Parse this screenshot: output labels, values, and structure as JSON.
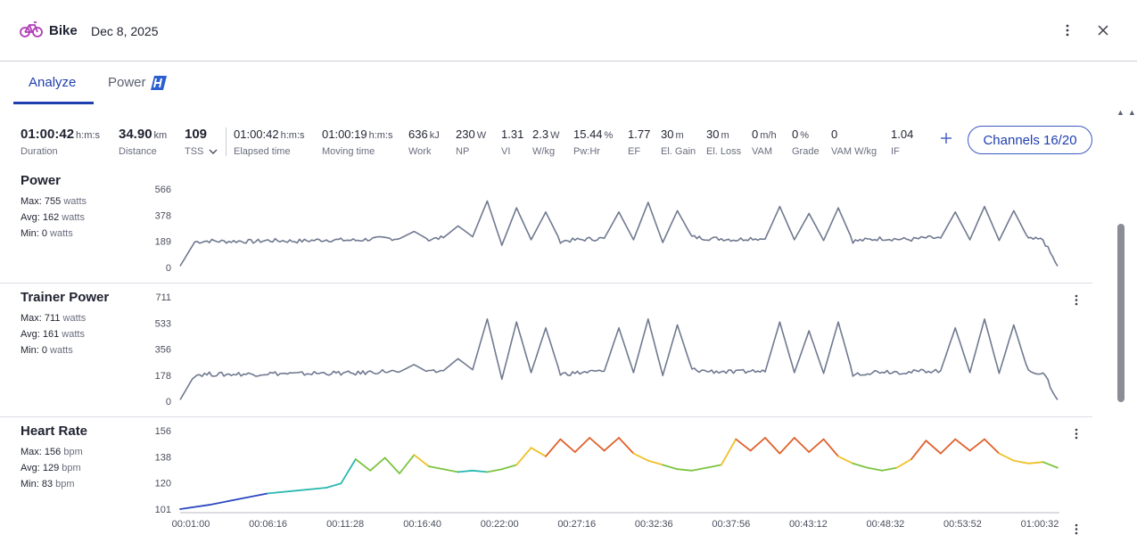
{
  "header": {
    "sport": "Bike",
    "date": "Dec 8, 2025",
    "icons": {
      "sport": "bike-icon",
      "menu": "more-vertical-icon",
      "close": "close-icon"
    },
    "sport_icon_color": "#b03ab8"
  },
  "tabs": [
    {
      "label": "Analyze",
      "active": true
    },
    {
      "label": "Power",
      "active": false,
      "icon": "power-brand-icon"
    }
  ],
  "summary": [
    {
      "value": "01:00:42",
      "unit": "h:m:s",
      "label": "Duration",
      "big": true
    },
    {
      "value": "34.90",
      "unit": "km",
      "label": "Distance",
      "big": true
    },
    {
      "value": "109",
      "unit": "",
      "label": "TSS",
      "big": true,
      "dropdown": true
    },
    {
      "value": "01:00:42",
      "unit": "h:m:s",
      "label": "Elapsed time"
    },
    {
      "value": "01:00:19",
      "unit": "h:m:s",
      "label": "Moving time"
    },
    {
      "value": "636",
      "unit": "kJ",
      "label": "Work"
    },
    {
      "value": "230",
      "unit": "W",
      "label": "NP"
    },
    {
      "value": "1.31",
      "unit": "",
      "label": "VI"
    },
    {
      "value": "2.3",
      "unit": "W",
      "label": "W/kg"
    },
    {
      "value": "15.44",
      "unit": "%",
      "label": "Pw:Hr"
    },
    {
      "value": "1.77",
      "unit": "",
      "label": "EF"
    },
    {
      "value": "30",
      "unit": "m",
      "label": "El. Gain"
    },
    {
      "value": "30",
      "unit": "m",
      "label": "El. Loss"
    },
    {
      "value": "0",
      "unit": "m/h",
      "label": "VAM"
    },
    {
      "value": "0",
      "unit": "%",
      "label": "Grade"
    },
    {
      "value": "0",
      "unit": "",
      "label": "VAM W/kg"
    },
    {
      "value": "1.04",
      "unit": "",
      "label": "IF"
    }
  ],
  "toolbar": {
    "add_icon": "plus-icon",
    "channels_label": "Channels 16/20"
  },
  "panels": {
    "power": {
      "title": "Power",
      "max_label": "Max:",
      "max_value": "755",
      "max_unit": "watts",
      "avg_label": "Avg:",
      "avg_value": "162",
      "avg_unit": "watts",
      "min_label": "Min:",
      "min_value": "0",
      "min_unit": "watts",
      "y_ticks": [
        "566",
        "378",
        "189",
        "0"
      ]
    },
    "trainer_power": {
      "title": "Trainer Power",
      "max_label": "Max:",
      "max_value": "711",
      "max_unit": "watts",
      "avg_label": "Avg:",
      "avg_value": "161",
      "avg_unit": "watts",
      "min_label": "Min:",
      "min_value": "0",
      "min_unit": "watts",
      "y_ticks": [
        "711",
        "533",
        "356",
        "178",
        "0"
      ]
    },
    "heart_rate": {
      "title": "Heart Rate",
      "max_label": "Max:",
      "max_value": "156",
      "max_unit": "bpm",
      "avg_label": "Avg:",
      "avg_value": "129",
      "avg_unit": "bpm",
      "min_label": "Min:",
      "min_value": "83",
      "min_unit": "bpm",
      "y_ticks": [
        "156",
        "138",
        "120",
        "101"
      ]
    }
  },
  "x_axis_ticks": [
    "00:01:00",
    "00:06:16",
    "00:11:28",
    "00:16:40",
    "00:22:00",
    "00:27:16",
    "00:32:36",
    "00:37:56",
    "00:43:12",
    "00:48:32",
    "00:53:52",
    "01:00:32"
  ],
  "colors": {
    "accent": "#1f3fb0",
    "power_line": "#6f7990",
    "hr_low": "#2a46c0",
    "hr_mid": "#2ab8b0",
    "hr_green": "#7cc440",
    "hr_yellow": "#f0c02a",
    "hr_red": "#8a1030"
  },
  "chart_data": [
    {
      "type": "line",
      "title": "Power",
      "ylabel": "watts",
      "ylim": [
        0,
        566
      ],
      "series": [
        {
          "name": "Power",
          "x": [
            0,
            1,
            2,
            3,
            4,
            5,
            6,
            7,
            8,
            9,
            10,
            11,
            12,
            13,
            14,
            15,
            16,
            17,
            18,
            19,
            20,
            21,
            22,
            23,
            24,
            25,
            26,
            27,
            28,
            29,
            30,
            31,
            32,
            33,
            34,
            35,
            36,
            37,
            38,
            39,
            40,
            41,
            42,
            43,
            44,
            45,
            46,
            47,
            48,
            49,
            50,
            51,
            52,
            53,
            54,
            55,
            56,
            57,
            58,
            59,
            60
          ],
          "y": [
            10,
            185,
            192,
            188,
            190,
            187,
            195,
            193,
            190,
            195,
            200,
            198,
            196,
            205,
            210,
            208,
            260,
            200,
            215,
            300,
            222,
            480,
            160,
            430,
            200,
            400,
            190,
            198,
            205,
            210,
            400,
            200,
            470,
            180,
            410,
            220,
            210,
            208,
            200,
            212,
            205,
            440,
            200,
            390,
            195,
            430,
            190,
            200,
            210,
            205,
            202,
            214,
            212,
            400,
            200,
            440,
            195,
            410,
            205,
            200,
            10
          ]
        }
      ]
    },
    {
      "type": "line",
      "title": "Trainer Power",
      "ylabel": "watts",
      "ylim": [
        0,
        711
      ],
      "series": [
        {
          "name": "Trainer Power",
          "x": [
            0,
            1,
            2,
            3,
            4,
            5,
            6,
            7,
            8,
            9,
            10,
            11,
            12,
            13,
            14,
            15,
            16,
            17,
            18,
            19,
            20,
            21,
            22,
            23,
            24,
            25,
            26,
            27,
            28,
            29,
            30,
            31,
            32,
            33,
            34,
            35,
            36,
            37,
            38,
            39,
            40,
            41,
            42,
            43,
            44,
            45,
            46,
            47,
            48,
            49,
            50,
            51,
            52,
            53,
            54,
            55,
            56,
            57,
            58,
            59,
            60
          ],
          "y": [
            10,
            180,
            185,
            182,
            186,
            184,
            190,
            188,
            186,
            190,
            192,
            191,
            190,
            198,
            204,
            200,
            250,
            195,
            208,
            290,
            215,
            560,
            150,
            540,
            195,
            500,
            185,
            192,
            200,
            205,
            500,
            195,
            560,
            175,
            520,
            215,
            205,
            203,
            196,
            207,
            200,
            540,
            195,
            480,
            190,
            540,
            185,
            195,
            205,
            200,
            198,
            208,
            207,
            500,
            195,
            560,
            190,
            520,
            200,
            195,
            10
          ]
        }
      ]
    },
    {
      "type": "line",
      "title": "Heart Rate",
      "ylabel": "bpm",
      "ylim": [
        101,
        156
      ],
      "series": [
        {
          "name": "Heart Rate",
          "x": [
            0,
            2,
            4,
            6,
            8,
            10,
            11,
            12,
            13,
            14,
            15,
            16,
            17,
            18,
            19,
            20,
            21,
            22,
            23,
            24,
            25,
            26,
            27,
            28,
            29,
            30,
            31,
            32,
            33,
            34,
            35,
            36,
            37,
            38,
            39,
            40,
            41,
            42,
            43,
            44,
            45,
            46,
            47,
            48,
            49,
            50,
            51,
            52,
            53,
            54,
            55,
            56,
            57,
            58,
            59,
            60
          ],
          "y": [
            101,
            104,
            108,
            112,
            114,
            116,
            119,
            136,
            128,
            137,
            126,
            139,
            131,
            129,
            127,
            128,
            127,
            129,
            132,
            144,
            138,
            150,
            141,
            151,
            142,
            151,
            140,
            135,
            132,
            129,
            128,
            130,
            132,
            150,
            142,
            151,
            140,
            151,
            141,
            150,
            138,
            133,
            130,
            128,
            130,
            136,
            149,
            140,
            150,
            142,
            150,
            140,
            135,
            133,
            134,
            130
          ]
        }
      ]
    }
  ]
}
